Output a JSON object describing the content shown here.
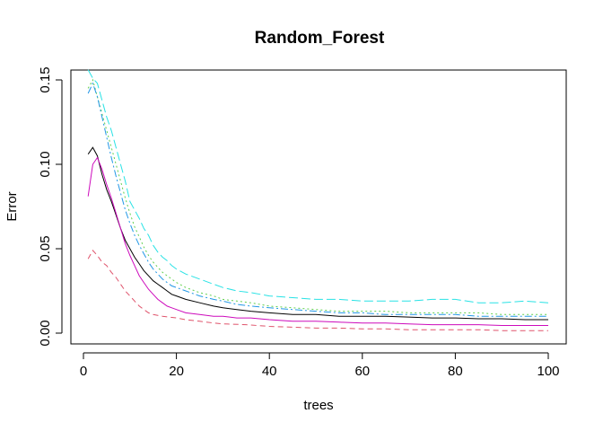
{
  "chart_data": {
    "type": "line",
    "title": "Random_Forest",
    "xlabel": "trees",
    "ylabel": "Error",
    "xlim": [
      1,
      100
    ],
    "ylim": [
      0,
      0.155
    ],
    "xticks": [
      0,
      20,
      40,
      60,
      80,
      100
    ],
    "yticks": [
      0.0,
      0.05,
      0.1,
      0.15
    ],
    "ytick_labels": [
      "0.00",
      "0.05",
      "0.10",
      "0.15"
    ],
    "xtick_labels": [
      "0",
      "20",
      "40",
      "60",
      "80",
      "100"
    ],
    "grid": false,
    "legend": "none",
    "series": [
      {
        "color": "#000000",
        "dash": "solid",
        "points": [
          [
            1,
            0.106
          ],
          [
            2,
            0.11
          ],
          [
            3,
            0.105
          ],
          [
            4,
            0.094
          ],
          [
            5,
            0.085
          ],
          [
            6,
            0.078
          ],
          [
            7,
            0.07
          ],
          [
            8,
            0.062
          ],
          [
            9,
            0.055
          ],
          [
            10,
            0.05
          ],
          [
            11,
            0.045
          ],
          [
            12,
            0.041
          ],
          [
            13,
            0.037
          ],
          [
            14,
            0.034
          ],
          [
            15,
            0.031
          ],
          [
            16,
            0.029
          ],
          [
            17,
            0.027
          ],
          [
            18,
            0.025
          ],
          [
            19,
            0.023
          ],
          [
            20,
            0.022
          ],
          [
            22,
            0.02
          ],
          [
            25,
            0.018
          ],
          [
            28,
            0.016
          ],
          [
            30,
            0.015
          ],
          [
            33,
            0.014
          ],
          [
            36,
            0.013
          ],
          [
            40,
            0.012
          ],
          [
            45,
            0.011
          ],
          [
            50,
            0.011
          ],
          [
            55,
            0.01
          ],
          [
            60,
            0.01
          ],
          [
            65,
            0.01
          ],
          [
            70,
            0.0095
          ],
          [
            75,
            0.009
          ],
          [
            80,
            0.009
          ],
          [
            85,
            0.0085
          ],
          [
            90,
            0.0085
          ],
          [
            95,
            0.008
          ],
          [
            100,
            0.008
          ]
        ]
      },
      {
        "color": "#DF536B",
        "dash": "6,4",
        "points": [
          [
            1,
            0.044
          ],
          [
            2,
            0.049
          ],
          [
            3,
            0.046
          ],
          [
            4,
            0.042
          ],
          [
            5,
            0.04
          ],
          [
            6,
            0.036
          ],
          [
            7,
            0.033
          ],
          [
            8,
            0.029
          ],
          [
            9,
            0.025
          ],
          [
            10,
            0.022
          ],
          [
            11,
            0.019
          ],
          [
            12,
            0.016
          ],
          [
            13,
            0.014
          ],
          [
            14,
            0.012
          ],
          [
            15,
            0.011
          ],
          [
            17,
            0.01
          ],
          [
            20,
            0.009
          ],
          [
            22,
            0.008
          ],
          [
            25,
            0.007
          ],
          [
            28,
            0.006
          ],
          [
            30,
            0.0055
          ],
          [
            35,
            0.005
          ],
          [
            40,
            0.004
          ],
          [
            45,
            0.0035
          ],
          [
            50,
            0.003
          ],
          [
            55,
            0.003
          ],
          [
            60,
            0.0025
          ],
          [
            65,
            0.0025
          ],
          [
            70,
            0.002
          ],
          [
            75,
            0.002
          ],
          [
            80,
            0.002
          ],
          [
            85,
            0.002
          ],
          [
            90,
            0.0015
          ],
          [
            95,
            0.0015
          ],
          [
            100,
            0.0015
          ]
        ]
      },
      {
        "color": "#61D04F",
        "dash": "2,3",
        "points": [
          [
            1,
            0.145
          ],
          [
            2,
            0.15
          ],
          [
            3,
            0.14
          ],
          [
            4,
            0.13
          ],
          [
            5,
            0.12
          ],
          [
            6,
            0.11
          ],
          [
            7,
            0.1
          ],
          [
            8,
            0.09
          ],
          [
            9,
            0.08
          ],
          [
            10,
            0.071
          ],
          [
            11,
            0.063
          ],
          [
            12,
            0.057
          ],
          [
            13,
            0.051
          ],
          [
            14,
            0.046
          ],
          [
            15,
            0.042
          ],
          [
            16,
            0.039
          ],
          [
            17,
            0.036
          ],
          [
            18,
            0.034
          ],
          [
            19,
            0.032
          ],
          [
            20,
            0.03
          ],
          [
            22,
            0.027
          ],
          [
            25,
            0.024
          ],
          [
            28,
            0.022
          ],
          [
            30,
            0.02
          ],
          [
            33,
            0.019
          ],
          [
            36,
            0.018
          ],
          [
            40,
            0.016
          ],
          [
            45,
            0.015
          ],
          [
            50,
            0.014
          ],
          [
            55,
            0.013
          ],
          [
            60,
            0.013
          ],
          [
            65,
            0.013
          ],
          [
            70,
            0.012
          ],
          [
            75,
            0.012
          ],
          [
            80,
            0.012
          ],
          [
            85,
            0.012
          ],
          [
            90,
            0.011
          ],
          [
            95,
            0.011
          ],
          [
            100,
            0.011
          ]
        ]
      },
      {
        "color": "#2297E6",
        "dash": "8,3,2,3",
        "points": [
          [
            1,
            0.142
          ],
          [
            2,
            0.148
          ],
          [
            3,
            0.14
          ],
          [
            4,
            0.128
          ],
          [
            5,
            0.116
          ],
          [
            6,
            0.104
          ],
          [
            7,
            0.093
          ],
          [
            8,
            0.083
          ],
          [
            9,
            0.073
          ],
          [
            10,
            0.065
          ],
          [
            11,
            0.058
          ],
          [
            12,
            0.052
          ],
          [
            13,
            0.047
          ],
          [
            14,
            0.042
          ],
          [
            15,
            0.038
          ],
          [
            16,
            0.035
          ],
          [
            17,
            0.032
          ],
          [
            18,
            0.03
          ],
          [
            19,
            0.028
          ],
          [
            20,
            0.027
          ],
          [
            22,
            0.025
          ],
          [
            25,
            0.022
          ],
          [
            28,
            0.02
          ],
          [
            30,
            0.019
          ],
          [
            33,
            0.017
          ],
          [
            36,
            0.016
          ],
          [
            40,
            0.015
          ],
          [
            45,
            0.014
          ],
          [
            50,
            0.013
          ],
          [
            55,
            0.012
          ],
          [
            60,
            0.012
          ],
          [
            65,
            0.011
          ],
          [
            70,
            0.011
          ],
          [
            75,
            0.011
          ],
          [
            80,
            0.011
          ],
          [
            85,
            0.01
          ],
          [
            90,
            0.01
          ],
          [
            95,
            0.01
          ],
          [
            100,
            0.01
          ]
        ]
      },
      {
        "color": "#28E2E5",
        "dash": "10,4",
        "points": [
          [
            1,
            0.156
          ],
          [
            2,
            0.151
          ],
          [
            3,
            0.148
          ],
          [
            4,
            0.138
          ],
          [
            5,
            0.128
          ],
          [
            6,
            0.12
          ],
          [
            7,
            0.11
          ],
          [
            8,
            0.1
          ],
          [
            9,
            0.09
          ],
          [
            10,
            0.078
          ],
          [
            11,
            0.073
          ],
          [
            12,
            0.068
          ],
          [
            13,
            0.062
          ],
          [
            14,
            0.058
          ],
          [
            15,
            0.052
          ],
          [
            16,
            0.048
          ],
          [
            17,
            0.045
          ],
          [
            18,
            0.043
          ],
          [
            19,
            0.04
          ],
          [
            20,
            0.038
          ],
          [
            22,
            0.035
          ],
          [
            25,
            0.032
          ],
          [
            28,
            0.029
          ],
          [
            30,
            0.027
          ],
          [
            33,
            0.025
          ],
          [
            36,
            0.024
          ],
          [
            40,
            0.022
          ],
          [
            45,
            0.021
          ],
          [
            50,
            0.02
          ],
          [
            55,
            0.02
          ],
          [
            60,
            0.019
          ],
          [
            65,
            0.019
          ],
          [
            70,
            0.019
          ],
          [
            75,
            0.02
          ],
          [
            80,
            0.02
          ],
          [
            85,
            0.018
          ],
          [
            90,
            0.018
          ],
          [
            95,
            0.019
          ],
          [
            100,
            0.018
          ]
        ]
      },
      {
        "color": "#CD0BBC",
        "dash": "solid",
        "points": [
          [
            1,
            0.081
          ],
          [
            2,
            0.1
          ],
          [
            3,
            0.104
          ],
          [
            4,
            0.097
          ],
          [
            5,
            0.088
          ],
          [
            6,
            0.08
          ],
          [
            7,
            0.071
          ],
          [
            8,
            0.062
          ],
          [
            9,
            0.053
          ],
          [
            10,
            0.046
          ],
          [
            11,
            0.04
          ],
          [
            12,
            0.034
          ],
          [
            13,
            0.03
          ],
          [
            14,
            0.026
          ],
          [
            15,
            0.023
          ],
          [
            16,
            0.02
          ],
          [
            17,
            0.018
          ],
          [
            18,
            0.016
          ],
          [
            19,
            0.015
          ],
          [
            20,
            0.014
          ],
          [
            22,
            0.012
          ],
          [
            25,
            0.011
          ],
          [
            28,
            0.01
          ],
          [
            30,
            0.01
          ],
          [
            33,
            0.009
          ],
          [
            36,
            0.009
          ],
          [
            40,
            0.008
          ],
          [
            45,
            0.007
          ],
          [
            50,
            0.007
          ],
          [
            55,
            0.0065
          ],
          [
            60,
            0.006
          ],
          [
            65,
            0.006
          ],
          [
            70,
            0.0055
          ],
          [
            75,
            0.005
          ],
          [
            80,
            0.005
          ],
          [
            85,
            0.005
          ],
          [
            90,
            0.0045
          ],
          [
            95,
            0.0045
          ],
          [
            100,
            0.0045
          ]
        ]
      }
    ]
  }
}
